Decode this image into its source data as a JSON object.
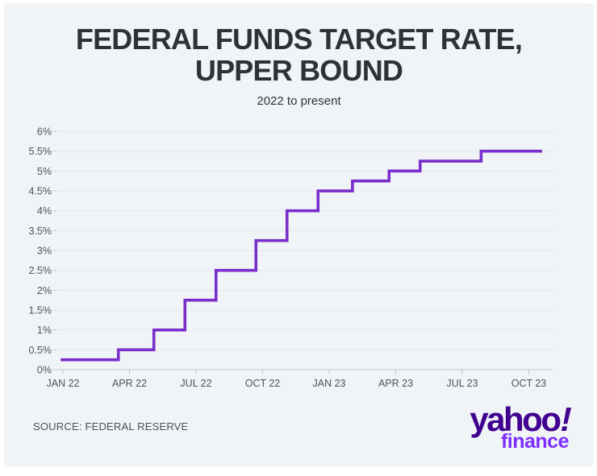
{
  "page": {
    "background_color": "#ffffff",
    "card_background_color": "#f0f4f7"
  },
  "header": {
    "title_line1": "FEDERAL FUNDS TARGET RATE,",
    "title_line2": "UPPER BOUND",
    "subtitle": "2022 to present",
    "title_color": "#2e3136"
  },
  "footer": {
    "source_label": "SOURCE: FEDERAL RESERVE",
    "logo": {
      "brand": "yahoo",
      "exclamation": "!",
      "sub_brand": "finance",
      "brand_color": "#400090",
      "sub_brand_color": "#7d2eff"
    }
  },
  "chart_data": {
    "type": "line",
    "subtype": "step",
    "title": "FEDERAL FUNDS TARGET RATE, UPPER BOUND",
    "subtitle": "2022 to present",
    "xlabel": "",
    "ylabel": "",
    "grid": true,
    "legend_position": "none",
    "xlim_months_from_jan22": [
      -0.3,
      22.3
    ],
    "ylim": [
      0,
      6
    ],
    "grid_color": "#e3e8ec",
    "axis_color": "#c2c7cc",
    "tick_label_color": "#4d5359",
    "y_ticks": [
      {
        "value": 0,
        "label": "0%"
      },
      {
        "value": 0.5,
        "label": "0.5%"
      },
      {
        "value": 1,
        "label": "1%"
      },
      {
        "value": 1.5,
        "label": "1.5%"
      },
      {
        "value": 2,
        "label": "2%"
      },
      {
        "value": 2.5,
        "label": "2.5%"
      },
      {
        "value": 3,
        "label": "3%"
      },
      {
        "value": 3.5,
        "label": "3.5%"
      },
      {
        "value": 4,
        "label": "4%"
      },
      {
        "value": 4.5,
        "label": "4.5%"
      },
      {
        "value": 5,
        "label": "5%"
      },
      {
        "value": 5.5,
        "label": "5.5%"
      },
      {
        "value": 6,
        "label": "6%"
      }
    ],
    "x_ticks": [
      {
        "month": 0,
        "label": "JAN 22"
      },
      {
        "month": 3,
        "label": "APR 22"
      },
      {
        "month": 6,
        "label": "JUL 22"
      },
      {
        "month": 9,
        "label": "OCT 22"
      },
      {
        "month": 12,
        "label": "JAN 23"
      },
      {
        "month": 15,
        "label": "APR 23"
      },
      {
        "month": 18,
        "label": "JUL 23"
      },
      {
        "month": 21,
        "label": "OCT 23"
      }
    ],
    "series": [
      {
        "name": "Federal funds target rate, upper bound",
        "color": "#7a2ecc",
        "line_width": 3.6,
        "steps_x_month_is_months_after_jan_2022": true,
        "steps": [
          {
            "x_month": -0.1,
            "rate_pct": 0.25
          },
          {
            "x_month": 2.5,
            "rate_pct": 0.5
          },
          {
            "x_month": 4.1,
            "rate_pct": 1.0
          },
          {
            "x_month": 5.5,
            "rate_pct": 1.75
          },
          {
            "x_month": 6.9,
            "rate_pct": 2.5
          },
          {
            "x_month": 8.7,
            "rate_pct": 3.25
          },
          {
            "x_month": 10.1,
            "rate_pct": 4.0
          },
          {
            "x_month": 11.5,
            "rate_pct": 4.5
          },
          {
            "x_month": 13.05,
            "rate_pct": 4.75
          },
          {
            "x_month": 14.7,
            "rate_pct": 5.0
          },
          {
            "x_month": 16.1,
            "rate_pct": 5.25
          },
          {
            "x_month": 18.85,
            "rate_pct": 5.5
          },
          {
            "x_month": 21.6,
            "rate_pct": 5.5
          }
        ]
      }
    ]
  }
}
